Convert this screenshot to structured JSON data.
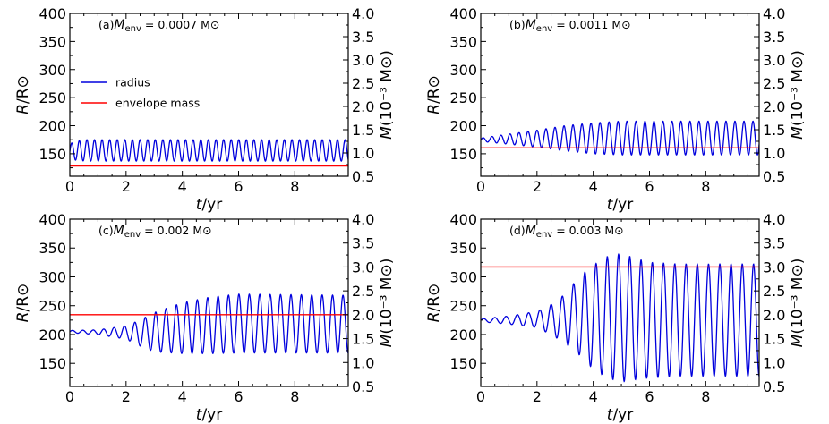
{
  "figure": {
    "x_axis_title": "t/yr",
    "left_axis_title": "R/R⊙",
    "right_axis_title": "M(10⁻³ M⊙)"
  },
  "legend": {
    "position": "upper-left of panel (a)",
    "items": [
      {
        "label": "radius",
        "color": "#0000dd"
      },
      {
        "label": "envelope mass",
        "color": "#ff0000"
      }
    ]
  },
  "chart_data": [
    {
      "type": "line",
      "panel_label": "(a)M_env = 0.0007 M⊙",
      "xlabel": "t/yr",
      "ylabel": "R/R⊙",
      "y2label": "M(10⁻³ M⊙)",
      "xlim": [
        0,
        9.9
      ],
      "ylim": [
        110,
        400
      ],
      "y2lim": [
        0.5,
        4.0
      ],
      "xticks": [
        0,
        2,
        4,
        6,
        8
      ],
      "yticks": [
        150,
        200,
        250,
        300,
        350,
        400
      ],
      "y2ticks": [
        0.5,
        1.0,
        1.5,
        2.0,
        2.5,
        3.0,
        3.5,
        4.0
      ],
      "series": [
        {
          "name": "radius",
          "color": "#0000dd",
          "axis": "left",
          "period_yr": 0.27,
          "t": [
            0,
            0.3,
            0.6,
            9.9
          ],
          "max": [
            168,
            173,
            175,
            175
          ],
          "min": [
            140,
            138,
            137,
            137
          ]
        },
        {
          "name": "envelope mass",
          "color": "#ff0000",
          "axis": "right",
          "value": 0.72
        }
      ]
    },
    {
      "type": "line",
      "panel_label": "(b)M_env = 0.0011 M⊙",
      "xlabel": "t/yr",
      "ylabel": "R/R⊙",
      "y2label": "M(10⁻³ M⊙)",
      "xlim": [
        0,
        9.9
      ],
      "ylim": [
        110,
        400
      ],
      "y2lim": [
        0.5,
        4.0
      ],
      "xticks": [
        0,
        2,
        4,
        6,
        8
      ],
      "yticks": [
        150,
        200,
        250,
        300,
        350,
        400
      ],
      "y2ticks": [
        0.5,
        1.0,
        1.5,
        2.0,
        2.5,
        3.0,
        3.5,
        4.0
      ],
      "series": [
        {
          "name": "radius",
          "color": "#0000dd",
          "axis": "left",
          "period_yr": 0.32,
          "t": [
            0,
            1.0,
            2.0,
            3.0,
            4.0,
            5.0,
            9.9
          ],
          "max": [
            178,
            185,
            192,
            200,
            205,
            208,
            208
          ],
          "min": [
            172,
            167,
            162,
            155,
            150,
            148,
            148
          ]
        },
        {
          "name": "envelope mass",
          "color": "#ff0000",
          "axis": "right",
          "value": 1.11
        }
      ]
    },
    {
      "type": "line",
      "panel_label": "(c)M_env = 0.002 M⊙",
      "xlabel": "t/yr",
      "ylabel": "R/R⊙",
      "y2label": "M(10⁻³ M⊙)",
      "xlim": [
        0,
        9.9
      ],
      "ylim": [
        110,
        400
      ],
      "y2lim": [
        0.5,
        4.0
      ],
      "xticks": [
        0,
        2,
        4,
        6,
        8
      ],
      "yticks": [
        150,
        200,
        250,
        300,
        350,
        400
      ],
      "y2ticks": [
        0.5,
        1.0,
        1.5,
        2.0,
        2.5,
        3.0,
        3.5,
        4.0
      ],
      "series": [
        {
          "name": "radius",
          "color": "#0000dd",
          "axis": "left",
          "period_yr": 0.37,
          "t": [
            0,
            1.0,
            2.0,
            2.5,
            3.0,
            4.0,
            5.0,
            6.0,
            9.9
          ],
          "max": [
            207,
            208,
            215,
            225,
            238,
            255,
            265,
            270,
            268
          ],
          "min": [
            203,
            200,
            192,
            180,
            170,
            167,
            167,
            168,
            168
          ]
        },
        {
          "name": "envelope mass",
          "color": "#ff0000",
          "axis": "right",
          "value": 2.0
        }
      ]
    },
    {
      "type": "line",
      "panel_label": "(d)M_env = 0.003 M⊙",
      "xlabel": "t/yr",
      "ylabel": "R/R⊙",
      "y2label": "M(10⁻³ M⊙)",
      "xlim": [
        0,
        9.9
      ],
      "ylim": [
        110,
        400
      ],
      "y2lim": [
        0.5,
        4.0
      ],
      "xticks": [
        0,
        2,
        4,
        6,
        8
      ],
      "yticks": [
        150,
        200,
        250,
        300,
        350,
        400
      ],
      "y2ticks": [
        0.5,
        1.0,
        1.5,
        2.0,
        2.5,
        3.0,
        3.5,
        4.0
      ],
      "series": [
        {
          "name": "radius",
          "color": "#0000dd",
          "axis": "left",
          "period_yr": 0.4,
          "t": [
            0,
            1.0,
            2.0,
            2.5,
            3.0,
            3.5,
            4.0,
            4.5,
            5.0,
            5.5,
            6.0,
            7.0,
            9.9
          ],
          "max": [
            227,
            232,
            240,
            252,
            270,
            300,
            320,
            335,
            340,
            332,
            325,
            322,
            322
          ],
          "min": [
            222,
            218,
            212,
            200,
            185,
            165,
            140,
            125,
            118,
            122,
            125,
            128,
            128
          ]
        },
        {
          "name": "envelope mass",
          "color": "#ff0000",
          "axis": "right",
          "value": 3.0
        }
      ]
    }
  ]
}
